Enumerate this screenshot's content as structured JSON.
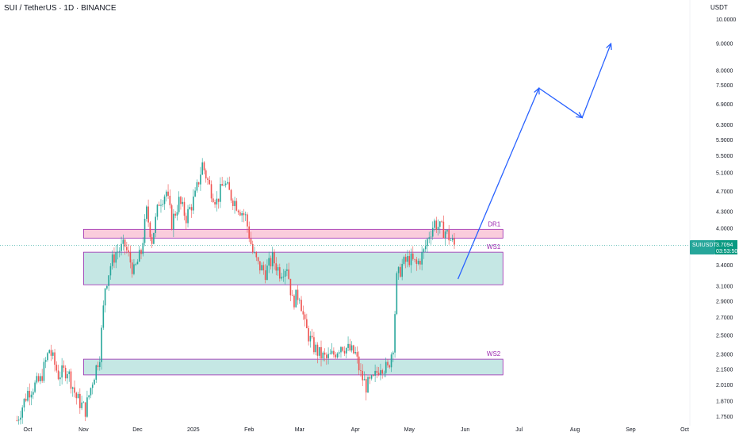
{
  "header": {
    "title": "SUI / TetherUS · 1D · BINANCE",
    "currency": "USDT"
  },
  "colors": {
    "up": "#26a69a",
    "down": "#ef5350",
    "zone_fill": "#b2dfdb",
    "zone_border": "#9c27b0",
    "resistance_fill": "#f8bbd0",
    "arrow": "#2962ff",
    "price_line": "#26a69a"
  },
  "price_badge": {
    "symbol": "SUIUSDT",
    "price": "3.7094",
    "countdown": "03:53:50"
  },
  "chart_data": {
    "type": "candlestick",
    "y_scale": "log",
    "ylim": [
      1.68,
      10.6
    ],
    "y_ticks": [
      "10.0000",
      "9.0000",
      "8.0000",
      "7.5000",
      "6.9000",
      "6.3000",
      "5.9000",
      "5.5000",
      "5.1000",
      "4.7000",
      "4.3000",
      "4.0000",
      "3.4000",
      "3.1000",
      "2.9000",
      "2.7000",
      "2.5000",
      "2.3000",
      "2.1500",
      "2.0100",
      "1.8700",
      "1.7500"
    ],
    "x_ticks": [
      "Oct",
      "Nov",
      "Dec",
      "2025",
      "Feb",
      "Mar",
      "Apr",
      "May",
      "Jun",
      "Jul",
      "Aug",
      "Sep",
      "Oct"
    ],
    "x_tick_dates": [
      "2024-10-01",
      "2024-11-01",
      "2024-12-01",
      "2025-01-01",
      "2025-02-01",
      "2025-03-01",
      "2025-04-01",
      "2025-05-01",
      "2025-06-01",
      "2025-07-01",
      "2025-08-01",
      "2025-09-01",
      "2025-10-01"
    ],
    "close_path": [
      [
        "2024-09-25",
        1.72
      ],
      [
        "2024-10-01",
        1.95
      ],
      [
        "2024-10-08",
        2.05
      ],
      [
        "2024-10-13",
        2.35
      ],
      [
        "2024-10-18",
        2.1
      ],
      [
        "2024-10-23",
        2.15
      ],
      [
        "2024-10-28",
        1.9
      ],
      [
        "2024-11-02",
        1.8
      ],
      [
        "2024-11-06",
        2.05
      ],
      [
        "2024-11-10",
        2.3
      ],
      [
        "2024-11-13",
        3.1
      ],
      [
        "2024-11-16",
        3.4
      ],
      [
        "2024-11-19",
        3.6
      ],
      [
        "2024-11-24",
        3.7
      ],
      [
        "2024-11-29",
        3.3
      ],
      [
        "2024-12-03",
        3.6
      ],
      [
        "2024-12-06",
        4.3
      ],
      [
        "2024-12-09",
        3.8
      ],
      [
        "2024-12-13",
        4.5
      ],
      [
        "2024-12-17",
        4.7
      ],
      [
        "2024-12-20",
        4.1
      ],
      [
        "2024-12-24",
        4.5
      ],
      [
        "2024-12-28",
        4.2
      ],
      [
        "2025-01-02",
        4.6
      ],
      [
        "2025-01-06",
        5.3
      ],
      [
        "2025-01-10",
        4.8
      ],
      [
        "2025-01-14",
        4.5
      ],
      [
        "2025-01-18",
        4.9
      ],
      [
        "2025-01-22",
        4.6
      ],
      [
        "2025-01-26",
        4.4
      ],
      [
        "2025-01-30",
        4.2
      ],
      [
        "2025-02-03",
        3.6
      ],
      [
        "2025-02-06",
        3.4
      ],
      [
        "2025-02-10",
        3.3
      ],
      [
        "2025-02-14",
        3.5
      ],
      [
        "2025-02-18",
        3.3
      ],
      [
        "2025-02-22",
        3.4
      ],
      [
        "2025-02-25",
        2.9
      ],
      [
        "2025-03-01",
        3.0
      ],
      [
        "2025-03-04",
        2.6
      ],
      [
        "2025-03-08",
        2.4
      ],
      [
        "2025-03-12",
        2.3
      ],
      [
        "2025-03-16",
        2.25
      ],
      [
        "2025-03-20",
        2.3
      ],
      [
        "2025-03-24",
        2.4
      ],
      [
        "2025-03-28",
        2.35
      ],
      [
        "2025-04-01",
        2.3
      ],
      [
        "2025-04-04",
        2.1
      ],
      [
        "2025-04-07",
        2.0
      ],
      [
        "2025-04-11",
        2.05
      ],
      [
        "2025-04-15",
        2.2
      ],
      [
        "2025-04-19",
        2.15
      ],
      [
        "2025-04-22",
        2.4
      ],
      [
        "2025-04-24",
        3.2
      ],
      [
        "2025-04-27",
        3.4
      ],
      [
        "2025-05-01",
        3.5
      ],
      [
        "2025-05-05",
        3.4
      ],
      [
        "2025-05-09",
        3.6
      ],
      [
        "2025-05-12",
        3.9
      ],
      [
        "2025-05-15",
        4.1
      ],
      [
        "2025-05-18",
        4.0
      ],
      [
        "2025-05-21",
        3.95
      ],
      [
        "2025-05-24",
        3.8
      ],
      [
        "2025-05-26",
        3.71
      ]
    ],
    "zones": [
      {
        "name": "DR1",
        "low": 3.83,
        "high": 3.98,
        "from": "2024-11-01",
        "to": "2025-06-22"
      },
      {
        "name": "WS1",
        "low": 3.12,
        "high": 3.6,
        "from": "2024-11-01",
        "to": "2025-06-22"
      },
      {
        "name": "WS2",
        "low": 2.1,
        "high": 2.25,
        "from": "2024-11-01",
        "to": "2025-06-22"
      }
    ],
    "projection": [
      [
        "2025-05-28",
        3.2
      ],
      [
        "2025-07-12",
        7.4
      ],
      [
        "2025-08-05",
        6.5
      ],
      [
        "2025-08-21",
        9.0
      ]
    ],
    "last_price": 3.7094
  }
}
